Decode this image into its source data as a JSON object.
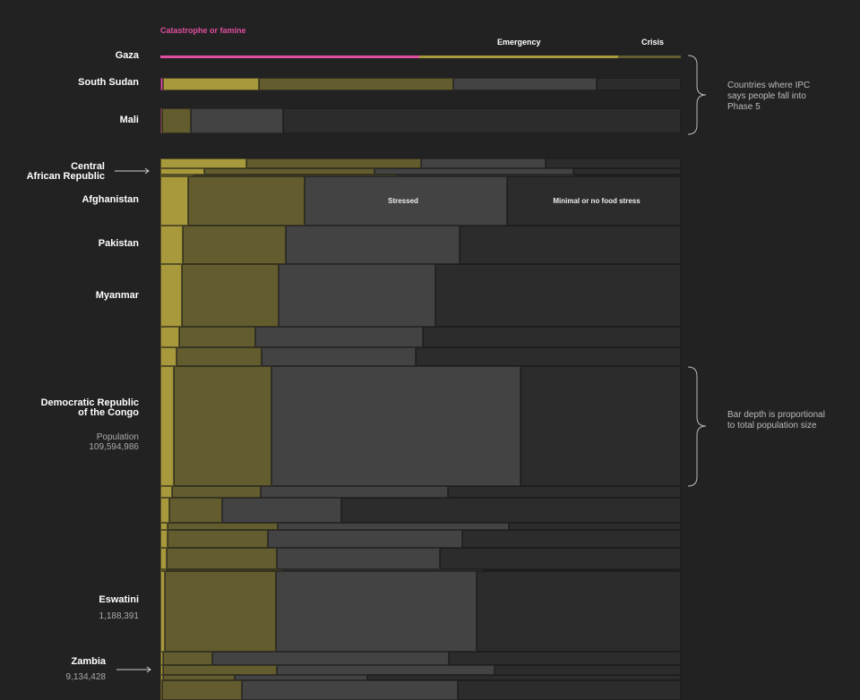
{
  "chart_data": {
    "type": "marimekko",
    "phases": [
      "Catastrophe or famine",
      "Emergency",
      "Crisis",
      "Stressed",
      "Minimal or no food stress"
    ],
    "colors": {
      "Catastrophe or famine": "#e04ea0",
      "Emergency": "#a89a3c",
      "Crisis": "#625c2e",
      "Stressed": "#434343",
      "Minimal or no food stress": "#2c2c2c",
      "background": "#222222"
    },
    "group1_note": "Countries where IPC says people fall into Phase 5",
    "group2_note": "Bar depth is proportional to total population size",
    "population_label": "Population",
    "rows": [
      {
        "label": "Gaza",
        "values": [
          49.7,
          38.2,
          12.1,
          0,
          0
        ]
      },
      {
        "label": "South Sudan",
        "values": [
          0.5,
          18.4,
          37.3,
          27.7,
          16.1
        ]
      },
      {
        "label": "Mali",
        "values": [
          0.1,
          0.3,
          5.5,
          17.6,
          76.5
        ]
      },
      {
        "label": "Central African Republic",
        "values": [
          0,
          16.5,
          33.6,
          23.9,
          26.0
        ]
      },
      {
        "label": "",
        "values": [
          0,
          8.4,
          32.7,
          38.2,
          20.7
        ]
      },
      {
        "label": "",
        "values": [
          0,
          6.2,
          39.1,
          34.2,
          20.5
        ]
      },
      {
        "label": "Afghanistan",
        "values": [
          0,
          5.3,
          22.4,
          38.9,
          33.4
        ]
      },
      {
        "label": "Pakistan",
        "values": [
          0,
          4.3,
          19.8,
          33.4,
          42.5
        ]
      },
      {
        "label": "Myanmar",
        "values": [
          0,
          4.1,
          18.6,
          30.1,
          47.2
        ]
      },
      {
        "label": "",
        "values": [
          0,
          3.6,
          14.6,
          32.2,
          49.6
        ]
      },
      {
        "label": "",
        "values": [
          0,
          3.1,
          16.4,
          29.6,
          50.9
        ]
      },
      {
        "label": "Democratic Republic of the Congo",
        "population": "109,594,986",
        "values": [
          0,
          2.6,
          18.8,
          47.8,
          30.8
        ]
      },
      {
        "label": "",
        "values": [
          0,
          2.2,
          17.0,
          36.1,
          44.7
        ]
      },
      {
        "label": "",
        "values": [
          0,
          1.7,
          10.2,
          22.9,
          65.2
        ]
      },
      {
        "label": "",
        "values": [
          0,
          1.4,
          21.2,
          44.4,
          33.0
        ]
      },
      {
        "label": "",
        "values": [
          0,
          1.4,
          19.3,
          37.3,
          42.0
        ]
      },
      {
        "label": "",
        "values": [
          0,
          1.2,
          21.2,
          31.3,
          46.3
        ]
      },
      {
        "label": "",
        "values": [
          0,
          1.0,
          22.4,
          38.6,
          38.0
        ]
      },
      {
        "label": "Eswatini",
        "population": "1,188,391",
        "values": [
          0,
          0.9,
          21.3,
          38.6,
          39.2
        ]
      },
      {
        "label": "",
        "values": [
          0,
          0.5,
          9.5,
          45.4,
          44.6
        ]
      },
      {
        "label": "Zambia",
        "population": "9,134,428",
        "values": [
          0,
          0.5,
          21.9,
          41.8,
          35.8
        ]
      },
      {
        "label": "",
        "values": [
          0,
          0.5,
          13.8,
          25.5,
          60.2
        ]
      },
      {
        "label": "",
        "values": [
          0,
          0.3,
          15.3,
          41.5,
          42.9
        ]
      }
    ]
  },
  "labels": {
    "car_line1": "Central",
    "car_line2": "African Republic",
    "drc_line1": "Democratic Republic",
    "drc_line2": "of the Congo"
  }
}
